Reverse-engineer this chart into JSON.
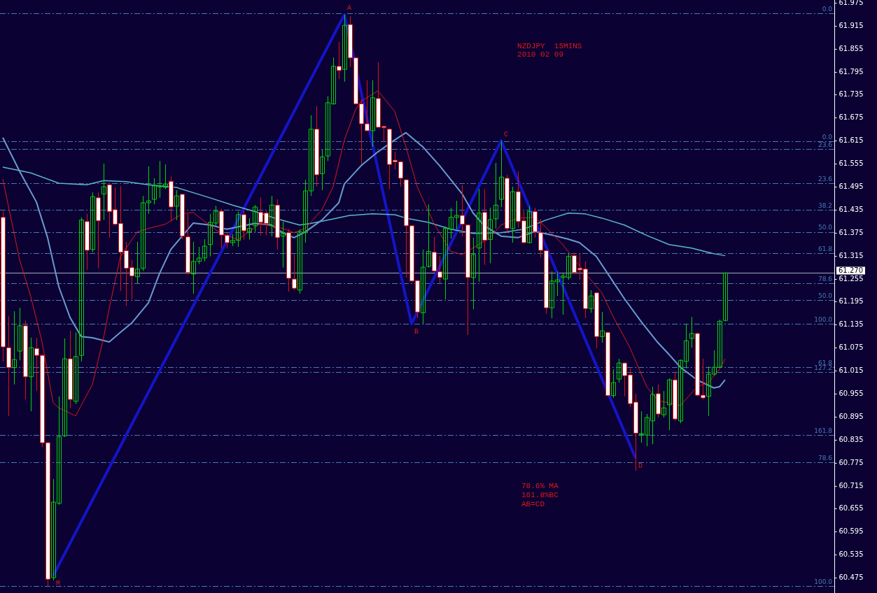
{
  "chart_data": {
    "type": "candlestick",
    "title": "NZDJPY  15MINS",
    "subtitle": "2010 02 09",
    "annotations": [
      "78.6% MA",
      "161.8%BC",
      "AB=CD",
      {
        "text": "0.0",
        "y": 61.947
      },
      {
        "text": "0.0",
        "y": 61.613
      },
      {
        "text": "23.6",
        "y": 61.593
      },
      {
        "text": "23.6",
        "y": 61.504
      },
      {
        "text": "38.2",
        "y": 61.435
      },
      {
        "text": "50.0",
        "y": 61.377
      },
      {
        "text": "61.8",
        "y": 61.322
      },
      {
        "text": "78.6",
        "y": 61.243
      },
      {
        "text": "50.0",
        "y": 61.199
      },
      {
        "text": "100.0",
        "y": 61.137
      },
      {
        "text": "61.8",
        "y": 61.024
      },
      {
        "text": "127.2",
        "y": 61.011
      },
      {
        "text": "161.8",
        "y": 60.847
      },
      {
        "text": "78.6",
        "y": 60.776
      },
      {
        "text": "100.0",
        "y": 60.453
      }
    ],
    "categories": [
      null,
      null,
      null,
      null,
      null,
      null,
      null,
      null,
      null,
      null,
      null,
      null,
      null,
      null,
      null,
      null,
      null,
      null,
      null,
      null,
      null,
      null,
      null,
      null,
      null,
      null,
      null,
      null,
      null,
      null,
      null,
      null,
      null,
      null,
      null,
      null,
      null,
      null,
      null,
      null,
      null,
      null,
      null,
      null,
      null,
      null,
      null,
      null,
      null,
      null,
      null,
      null,
      null,
      null,
      null,
      null,
      null,
      null,
      null,
      null,
      null,
      null,
      null,
      null,
      null,
      null,
      null,
      null,
      null,
      null,
      null,
      null,
      null,
      null,
      null,
      null,
      null,
      null,
      null,
      null,
      null,
      null,
      null,
      null,
      null,
      null,
      null,
      null,
      null,
      null,
      null,
      null,
      null,
      null,
      null,
      null,
      null,
      null,
      null,
      null,
      null,
      null,
      null,
      null,
      null,
      null,
      null,
      null,
      null,
      null,
      null,
      null,
      null,
      null,
      null,
      null,
      null,
      null,
      null,
      null,
      null,
      null,
      null,
      null,
      null,
      null,
      null,
      null,
      null,
      null,
      null,
      null,
      null,
      null,
      null,
      null,
      null,
      null,
      null,
      null,
      null,
      null,
      null,
      null,
      null,
      null,
      null,
      null,
      null
    ],
    "ohlc": [
      [
        61.415,
        61.431,
        61.039,
        61.077
      ],
      [
        61.075,
        61.157,
        60.897,
        61.023
      ],
      [
        61.023,
        61.17,
        60.979,
        61.044
      ],
      [
        61.066,
        61.179,
        61.042,
        61.132
      ],
      [
        61.132,
        61.146,
        60.94,
        60.999
      ],
      [
        60.999,
        61.101,
        60.909,
        61.075
      ],
      [
        61.073,
        61.101,
        60.962,
        61.055
      ],
      [
        61.055,
        61.058,
        60.816,
        60.827
      ],
      [
        60.827,
        60.829,
        60.453,
        60.471
      ],
      [
        60.475,
        60.732,
        60.468,
        60.672
      ],
      [
        60.669,
        60.948,
        60.665,
        60.843
      ],
      [
        60.845,
        61.099,
        60.842,
        61.046
      ],
      [
        61.046,
        61.119,
        60.917,
        60.94
      ],
      [
        60.935,
        61.115,
        60.928,
        61.052
      ],
      [
        61.055,
        61.415,
        61.039,
        61.408
      ],
      [
        61.404,
        61.424,
        61.278,
        61.329
      ],
      [
        61.331,
        61.48,
        61.324,
        61.469
      ],
      [
        61.466,
        61.48,
        61.282,
        61.406
      ],
      [
        61.476,
        61.555,
        61.408,
        61.495
      ],
      [
        61.5,
        61.504,
        61.362,
        61.43
      ],
      [
        61.435,
        61.493,
        61.393,
        61.397
      ],
      [
        61.399,
        61.497,
        61.223,
        61.324
      ],
      [
        61.328,
        61.351,
        61.184,
        61.282
      ],
      [
        61.284,
        61.304,
        61.201,
        61.262
      ],
      [
        61.26,
        61.351,
        61.243,
        61.28
      ],
      [
        61.282,
        61.471,
        61.275,
        61.453
      ],
      [
        61.453,
        61.548,
        61.424,
        61.458
      ],
      [
        61.462,
        61.517,
        61.449,
        61.497
      ],
      [
        61.495,
        61.562,
        61.466,
        61.497
      ],
      [
        61.493,
        61.553,
        61.489,
        61.502
      ],
      [
        61.509,
        61.522,
        61.404,
        61.442
      ],
      [
        61.444,
        61.486,
        61.408,
        61.471
      ],
      [
        61.475,
        61.477,
        61.358,
        61.366
      ],
      [
        61.364,
        61.424,
        61.265,
        61.271
      ],
      [
        61.267,
        61.351,
        61.216,
        61.3
      ],
      [
        61.3,
        61.338,
        61.293,
        61.309
      ],
      [
        61.309,
        61.358,
        61.3,
        61.34
      ],
      [
        61.344,
        61.424,
        61.313,
        61.402
      ],
      [
        61.4,
        61.445,
        61.393,
        61.431
      ],
      [
        61.431,
        61.437,
        61.335,
        61.369
      ],
      [
        61.368,
        61.375,
        61.335,
        61.349
      ],
      [
        61.349,
        61.371,
        61.34,
        61.355
      ],
      [
        61.355,
        61.43,
        61.338,
        61.422
      ],
      [
        61.422,
        61.435,
        61.357,
        61.38
      ],
      [
        61.377,
        61.413,
        61.357,
        61.386
      ],
      [
        61.393,
        61.447,
        61.377,
        61.442
      ],
      [
        61.428,
        61.467,
        61.368,
        61.402
      ],
      [
        61.426,
        61.431,
        61.368,
        61.399
      ],
      [
        61.393,
        61.471,
        61.366,
        61.447
      ],
      [
        61.447,
        61.462,
        61.331,
        61.362
      ],
      [
        61.366,
        61.404,
        61.284,
        61.373
      ],
      [
        61.375,
        61.384,
        61.221,
        61.256
      ],
      [
        61.254,
        61.32,
        61.225,
        61.23
      ],
      [
        61.225,
        61.384,
        61.216,
        61.377
      ],
      [
        61.375,
        61.513,
        61.349,
        61.484
      ],
      [
        61.484,
        61.681,
        61.471,
        61.645
      ],
      [
        61.645,
        61.705,
        61.495,
        61.526
      ],
      [
        61.529,
        61.593,
        61.486,
        61.573
      ],
      [
        61.575,
        61.731,
        61.562,
        61.714
      ],
      [
        61.711,
        61.832,
        61.709,
        61.809
      ],
      [
        61.809,
        61.873,
        61.776,
        61.798
      ],
      [
        61.801,
        61.944,
        61.769,
        61.916
      ],
      [
        61.918,
        61.94,
        61.807,
        61.831
      ],
      [
        61.831,
        61.833,
        61.709,
        61.711
      ],
      [
        61.711,
        61.722,
        61.553,
        61.659
      ],
      [
        61.659,
        61.773,
        61.639,
        61.641
      ],
      [
        61.641,
        61.773,
        61.599,
        61.727
      ],
      [
        61.725,
        61.82,
        61.649,
        61.65
      ],
      [
        61.652,
        61.654,
        61.612,
        61.649
      ],
      [
        61.645,
        61.647,
        61.489,
        61.553
      ],
      [
        61.564,
        61.586,
        61.54,
        61.56
      ],
      [
        61.56,
        61.562,
        61.495,
        61.517
      ],
      [
        61.513,
        61.515,
        61.258,
        61.393
      ],
      [
        61.393,
        61.395,
        61.247,
        61.249
      ],
      [
        61.25,
        61.252,
        61.152,
        61.168
      ],
      [
        61.166,
        61.331,
        61.137,
        61.285
      ],
      [
        61.287,
        61.449,
        61.284,
        61.326
      ],
      [
        61.324,
        61.364,
        61.271,
        61.275
      ],
      [
        61.273,
        61.315,
        61.243,
        61.258
      ],
      [
        61.254,
        61.391,
        61.201,
        61.386
      ],
      [
        61.384,
        61.44,
        61.36,
        61.415
      ],
      [
        61.415,
        61.458,
        61.384,
        61.42
      ],
      [
        61.42,
        61.499,
        61.366,
        61.397
      ],
      [
        61.395,
        61.397,
        61.108,
        61.258
      ],
      [
        61.258,
        61.362,
        61.175,
        61.318
      ],
      [
        61.335,
        61.489,
        61.247,
        61.426
      ],
      [
        61.428,
        61.489,
        61.291,
        61.355
      ],
      [
        61.357,
        61.44,
        61.295,
        61.409
      ],
      [
        61.411,
        61.557,
        61.386,
        61.447
      ],
      [
        61.462,
        61.615,
        61.442,
        61.52
      ],
      [
        61.517,
        61.526,
        61.375,
        61.386
      ],
      [
        61.386,
        61.495,
        61.349,
        61.482
      ],
      [
        61.482,
        61.535,
        61.389,
        61.404
      ],
      [
        61.406,
        61.431,
        61.347,
        61.349
      ],
      [
        61.349,
        61.445,
        61.347,
        61.43
      ],
      [
        61.43,
        61.44,
        61.362,
        61.377
      ],
      [
        61.375,
        61.411,
        61.311,
        61.329
      ],
      [
        61.328,
        61.33,
        61.164,
        61.179
      ],
      [
        61.179,
        61.274,
        61.152,
        61.249
      ],
      [
        61.247,
        61.274,
        61.21,
        61.252
      ],
      [
        61.258,
        61.269,
        61.161,
        61.262
      ],
      [
        61.258,
        61.322,
        61.252,
        61.313
      ],
      [
        61.315,
        61.322,
        61.267,
        61.271
      ],
      [
        61.282,
        61.32,
        61.252,
        61.278
      ],
      [
        61.28,
        61.3,
        61.152,
        61.177
      ],
      [
        61.177,
        61.225,
        61.166,
        61.21
      ],
      [
        61.218,
        61.22,
        61.073,
        61.104
      ],
      [
        61.104,
        61.168,
        61.088,
        61.119
      ],
      [
        61.115,
        61.117,
        60.948,
        60.95
      ],
      [
        60.95,
        61.019,
        60.944,
        60.984
      ],
      [
        60.993,
        61.046,
        60.984,
        61.035
      ],
      [
        61.035,
        61.037,
        60.948,
        61.002
      ],
      [
        61.004,
        61.021,
        60.92,
        60.929
      ],
      [
        60.933,
        60.955,
        60.754,
        60.852
      ],
      [
        60.849,
        60.909,
        60.827,
        60.851
      ],
      [
        60.847,
        60.902,
        60.818,
        60.893
      ],
      [
        60.884,
        60.973,
        60.823,
        60.953
      ],
      [
        60.955,
        60.979,
        60.893,
        60.902
      ],
      [
        60.9,
        60.962,
        60.893,
        60.918
      ],
      [
        60.926,
        60.995,
        60.86,
        60.991
      ],
      [
        60.991,
        61.012,
        60.884,
        60.889
      ],
      [
        60.884,
        61.044,
        60.878,
        61.042
      ],
      [
        61.039,
        61.137,
        61.021,
        61.093
      ],
      [
        61.099,
        61.155,
        61.075,
        61.112
      ],
      [
        61.112,
        61.115,
        60.948,
        60.951
      ],
      [
        60.951,
        61.046,
        60.94,
        60.944
      ],
      [
        60.948,
        61.026,
        60.897,
        61.006
      ],
      [
        61.006,
        61.068,
        61.002,
        61.024
      ],
      [
        61.024,
        61.148,
        61.022,
        61.144
      ],
      [
        61.146,
        61.271,
        61.144,
        61.27
      ],
      null,
      null,
      null,
      null,
      null,
      null,
      null,
      null,
      null,
      null,
      null,
      null,
      null,
      null,
      null,
      null,
      null,
      null,
      null
    ],
    "series": [
      {
        "type": "line",
        "color": "#d81818",
        "values": [
          61.515,
          null,
          null,
          61.304,
          null,
          61.208,
          null,
          61.09,
          null,
          60.931,
          60.918,
          null,
          null,
          60.897,
          null,
          null,
          60.979,
          null,
          61.101,
          61.177,
          null,
          61.313,
          null,
          null,
          61.377,
          null,
          61.386,
          null,
          null,
          61.397,
          null,
          null,
          61.424,
          null,
          61.428,
          null,
          null,
          61.393,
          null,
          61.373,
          null,
          null,
          61.357,
          null,
          null,
          null,
          61.399,
          null,
          null,
          null,
          61.386,
          null,
          61.375,
          null,
          61.386,
          null,
          null,
          61.435,
          null,
          61.495,
          null,
          61.617,
          null,
          61.696,
          61.718,
          null,
          null,
          61.745,
          null,
          null,
          61.691,
          null,
          61.599,
          null,
          61.495,
          null,
          null,
          61.399,
          null,
          null,
          61.326,
          null,
          61.318,
          null,
          null,
          61.344,
          null,
          61.362,
          null,
          61.395,
          null,
          null,
          61.413,
          null,
          null,
          61.415,
          null,
          61.389,
          null,
          null,
          61.344,
          null,
          61.307,
          null,
          null,
          61.252,
          null,
          61.218,
          null,
          61.156,
          null,
          null,
          61.075,
          null,
          null,
          60.973,
          null,
          60.937,
          null,
          60.931,
          null,
          60.924,
          null,
          null,
          60.973,
          null,
          60.984,
          null,
          61.019,
          61.046,
          null,
          null,
          null,
          null,
          null,
          null,
          null,
          null,
          null,
          null,
          null,
          null,
          null,
          null,
          null,
          null,
          null,
          null,
          null
        ]
      },
      {
        "type": "line",
        "color": "#6a9ad0",
        "values": [
          61.623,
          null,
          null,
          61.535,
          null,
          null,
          61.455,
          null,
          61.362,
          null,
          61.234,
          null,
          61.154,
          null,
          61.104,
          null,
          61.101,
          null,
          null,
          61.09,
          null,
          61.115,
          null,
          61.139,
          null,
          null,
          61.192,
          null,
          61.269,
          null,
          61.331,
          null,
          null,
          null,
          61.4,
          null,
          null,
          61.395,
          null,
          null,
          61.384,
          null,
          null,
          null,
          null,
          61.399,
          null,
          null,
          61.395,
          null,
          61.375,
          null,
          61.362,
          null,
          61.377,
          null,
          null,
          61.408,
          null,
          null,
          61.453,
          61.502,
          null,
          null,
          61.55,
          null,
          null,
          61.586,
          null,
          null,
          61.617,
          null,
          61.636,
          null,
          null,
          61.599,
          null,
          null,
          61.55,
          null,
          null,
          null,
          61.477,
          null,
          61.426,
          null,
          61.393,
          null,
          null,
          61.366,
          null,
          null,
          61.362,
          null,
          null,
          61.378,
          null,
          null,
          61.369,
          null,
          null,
          61.358,
          null,
          61.349,
          null,
          null,
          61.313,
          null,
          null,
          61.247,
          null,
          61.203,
          null,
          null,
          61.143,
          null,
          null,
          61.088,
          null,
          61.057,
          null,
          61.024,
          null,
          null,
          60.991,
          null,
          null,
          60.97,
          60.973,
          60.991,
          null,
          null,
          null,
          null,
          null,
          null,
          null,
          null,
          null,
          null,
          null,
          null,
          null,
          null,
          null,
          null,
          null,
          null,
          null
        ]
      },
      {
        "type": "line",
        "color": "#5cb6cc",
        "values": [
          61.546,
          null,
          null,
          null,
          null,
          61.531,
          null,
          null,
          null,
          null,
          61.504,
          null,
          null,
          null,
          null,
          61.5,
          null,
          null,
          61.511,
          null,
          null,
          null,
          61.508,
          null,
          null,
          null,
          61.5,
          null,
          null,
          null,
          null,
          61.493,
          null,
          null,
          null,
          null,
          null,
          61.466,
          null,
          null,
          null,
          61.447,
          null,
          null,
          null,
          61.43,
          null,
          null,
          null,
          61.411,
          null,
          null,
          null,
          61.395,
          null,
          61.399,
          null,
          null,
          61.408,
          null,
          null,
          null,
          61.42,
          null,
          null,
          null,
          61.424,
          null,
          null,
          null,
          61.422,
          null,
          61.413,
          null,
          null,
          null,
          61.402,
          null,
          null,
          null,
          61.384,
          null,
          null,
          null,
          61.373,
          null,
          null,
          null,
          null,
          61.375,
          null,
          null,
          null,
          61.384,
          null,
          null,
          null,
          61.408,
          null,
          null,
          null,
          61.426,
          null,
          null,
          61.424,
          null,
          null,
          61.413,
          null,
          null,
          null,
          61.395,
          null,
          null,
          null,
          61.368,
          null,
          null,
          null,
          61.344,
          null,
          null,
          null,
          61.335,
          null,
          null,
          null,
          61.32,
          null,
          61.315,
          null,
          null,
          null,
          null,
          null,
          null,
          null,
          null,
          null,
          null,
          null,
          null,
          null,
          null,
          null,
          null,
          null,
          null,
          null
        ]
      },
      {
        "type": "line",
        "color": "#1414c8",
        "values": [
          null,
          null,
          null,
          null,
          null,
          null,
          null,
          null,
          null,
          60.48,
          null,
          null,
          null,
          null,
          null,
          null,
          null,
          null,
          null,
          null,
          null,
          null,
          null,
          null,
          null,
          null,
          null,
          null,
          null,
          null,
          null,
          null,
          null,
          null,
          null,
          null,
          null,
          null,
          null,
          null,
          null,
          null,
          null,
          null,
          null,
          null,
          null,
          null,
          null,
          null,
          null,
          null,
          null,
          null,
          null,
          null,
          null,
          null,
          null,
          null,
          null,
          61.944,
          null,
          null,
          null,
          null,
          null,
          null,
          null,
          null,
          null,
          null,
          null,
          61.137,
          null,
          null,
          null,
          null,
          null,
          null,
          null,
          null,
          null,
          null,
          null,
          null,
          null,
          null,
          null,
          61.615,
          null,
          null,
          null,
          null,
          null,
          null,
          null,
          null,
          null,
          null,
          null,
          null,
          null,
          null,
          null,
          null,
          null,
          null,
          null,
          null,
          null,
          null,
          null,
          60.787,
          null,
          null,
          null,
          null,
          null,
          null,
          null,
          null,
          null,
          null,
          null,
          null,
          null,
          null,
          null,
          null,
          null,
          null,
          null,
          null,
          null,
          null,
          null,
          null,
          null,
          null,
          null,
          null,
          null,
          null,
          null,
          null,
          null,
          null,
          null
        ],
        "value_labels": [
          null,
          null,
          null,
          null,
          null,
          null,
          null,
          null,
          null,
          "M",
          null,
          null,
          null,
          null,
          null,
          null,
          null,
          null,
          null,
          null,
          null,
          null,
          null,
          null,
          null,
          null,
          null,
          null,
          null,
          null,
          null,
          null,
          null,
          null,
          null,
          null,
          null,
          null,
          null,
          null,
          null,
          null,
          null,
          null,
          null,
          null,
          null,
          null,
          null,
          null,
          null,
          null,
          null,
          null,
          null,
          null,
          null,
          null,
          null,
          null,
          null,
          "A",
          null,
          null,
          null,
          null,
          null,
          null,
          null,
          null,
          null,
          null,
          null,
          "B",
          null,
          null,
          null,
          null,
          null,
          null,
          null,
          null,
          null,
          null,
          null,
          null,
          null,
          null,
          null,
          "C",
          null,
          null,
          null,
          null,
          null,
          null,
          null,
          null,
          null,
          null,
          null,
          null,
          null,
          null,
          null,
          null,
          null,
          null,
          null,
          null,
          null,
          null,
          null,
          "D",
          null,
          null,
          null,
          null,
          null,
          null,
          null,
          null,
          null,
          null,
          null,
          null,
          null,
          null,
          null,
          null,
          null,
          null,
          null,
          null,
          null,
          null,
          null,
          null,
          null,
          null,
          null,
          null,
          null,
          null,
          null,
          null,
          null,
          null,
          null
        ]
      }
    ],
    "ylim": [
      60.435,
      61.982
    ],
    "yticks": [
      61.975,
      61.915,
      61.855,
      61.795,
      61.735,
      61.675,
      61.615,
      61.555,
      61.495,
      61.435,
      61.375,
      61.315,
      61.255,
      61.195,
      61.135,
      61.075,
      61.015,
      60.955,
      60.895,
      60.835,
      60.775,
      60.715,
      60.655,
      60.595,
      60.535,
      60.475
    ],
    "ref_lines": [
      {
        "axis": "y",
        "value": 61.947,
        "color": "#4a78b8",
        "line_style": "dashed"
      },
      {
        "axis": "y",
        "value": 61.613,
        "color": "#4a78b8",
        "line_style": "dashed"
      },
      {
        "axis": "y",
        "value": 61.593,
        "color": "#4a78b8",
        "line_style": "dashed"
      },
      {
        "axis": "y",
        "value": 61.504,
        "color": "#4a78b8",
        "line_style": "dashed"
      },
      {
        "axis": "y",
        "value": 61.435,
        "color": "#4a78b8",
        "line_style": "dashed"
      },
      {
        "axis": "y",
        "value": 61.377,
        "color": "#4a78b8",
        "line_style": "dashed"
      },
      {
        "axis": "y",
        "value": 61.322,
        "color": "#4a78b8",
        "line_style": "dashed"
      },
      {
        "axis": "y",
        "value": 61.27,
        "label": "61.270",
        "color": "#a8a8c8",
        "line_style": "solid"
      },
      {
        "axis": "y",
        "value": 61.243,
        "color": "#4a78b8",
        "line_style": "dashed"
      },
      {
        "axis": "y",
        "value": 61.199,
        "color": "#4a78b8",
        "line_style": "dashed"
      },
      {
        "axis": "y",
        "value": 61.137,
        "color": "#4a78b8",
        "line_style": "dashed"
      },
      {
        "axis": "y",
        "value": 61.024,
        "color": "#4a78b8",
        "line_style": "dashed"
      },
      {
        "axis": "y",
        "value": 61.011,
        "color": "#4a78b8",
        "line_style": "dashed"
      },
      {
        "axis": "y",
        "value": 60.847,
        "color": "#4a78b8",
        "line_style": "dashed"
      },
      {
        "axis": "y",
        "value": 60.776,
        "color": "#4a78b8",
        "line_style": "dashed"
      },
      {
        "axis": "y",
        "value": 60.453,
        "color": "#4a78b8",
        "line_style": "dashed"
      }
    ],
    "grid": false,
    "legend": false
  }
}
